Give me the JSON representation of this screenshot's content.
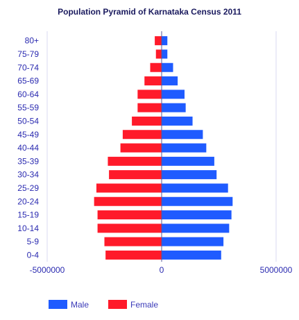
{
  "chart_data": {
    "type": "bar",
    "orientation": "horizontal",
    "title": "Population Pyramid of Karnataka Census 2011",
    "categories": [
      "80+",
      "75-79",
      "70-74",
      "65-69",
      "60-64",
      "55-59",
      "50-54",
      "45-49",
      "40-44",
      "35-39",
      "30-34",
      "25-29",
      "20-24",
      "15-19",
      "10-14",
      "5-9",
      "0-4"
    ],
    "series": [
      {
        "name": "Male",
        "color": "#1f5bff",
        "values": [
          250000,
          250000,
          500000,
          700000,
          1000000,
          1050000,
          1350000,
          1800000,
          1950000,
          2300000,
          2400000,
          2900000,
          3100000,
          3050000,
          2950000,
          2700000,
          2600000
        ]
      },
      {
        "name": "Female",
        "color": "#ff1a2a",
        "values": [
          -300000,
          -250000,
          -500000,
          -750000,
          -1050000,
          -1050000,
          -1300000,
          -1700000,
          -1800000,
          -2350000,
          -2300000,
          -2850000,
          -2950000,
          -2800000,
          -2800000,
          -2500000,
          -2450000
        ]
      }
    ],
    "xlim": [
      -5000000,
      5000000
    ],
    "xticks": [
      -5000000,
      0,
      5000000
    ],
    "xtick_labels": [
      "-5000000",
      "0",
      "5000000"
    ],
    "grid": true,
    "legend_position": "bottom-left"
  }
}
